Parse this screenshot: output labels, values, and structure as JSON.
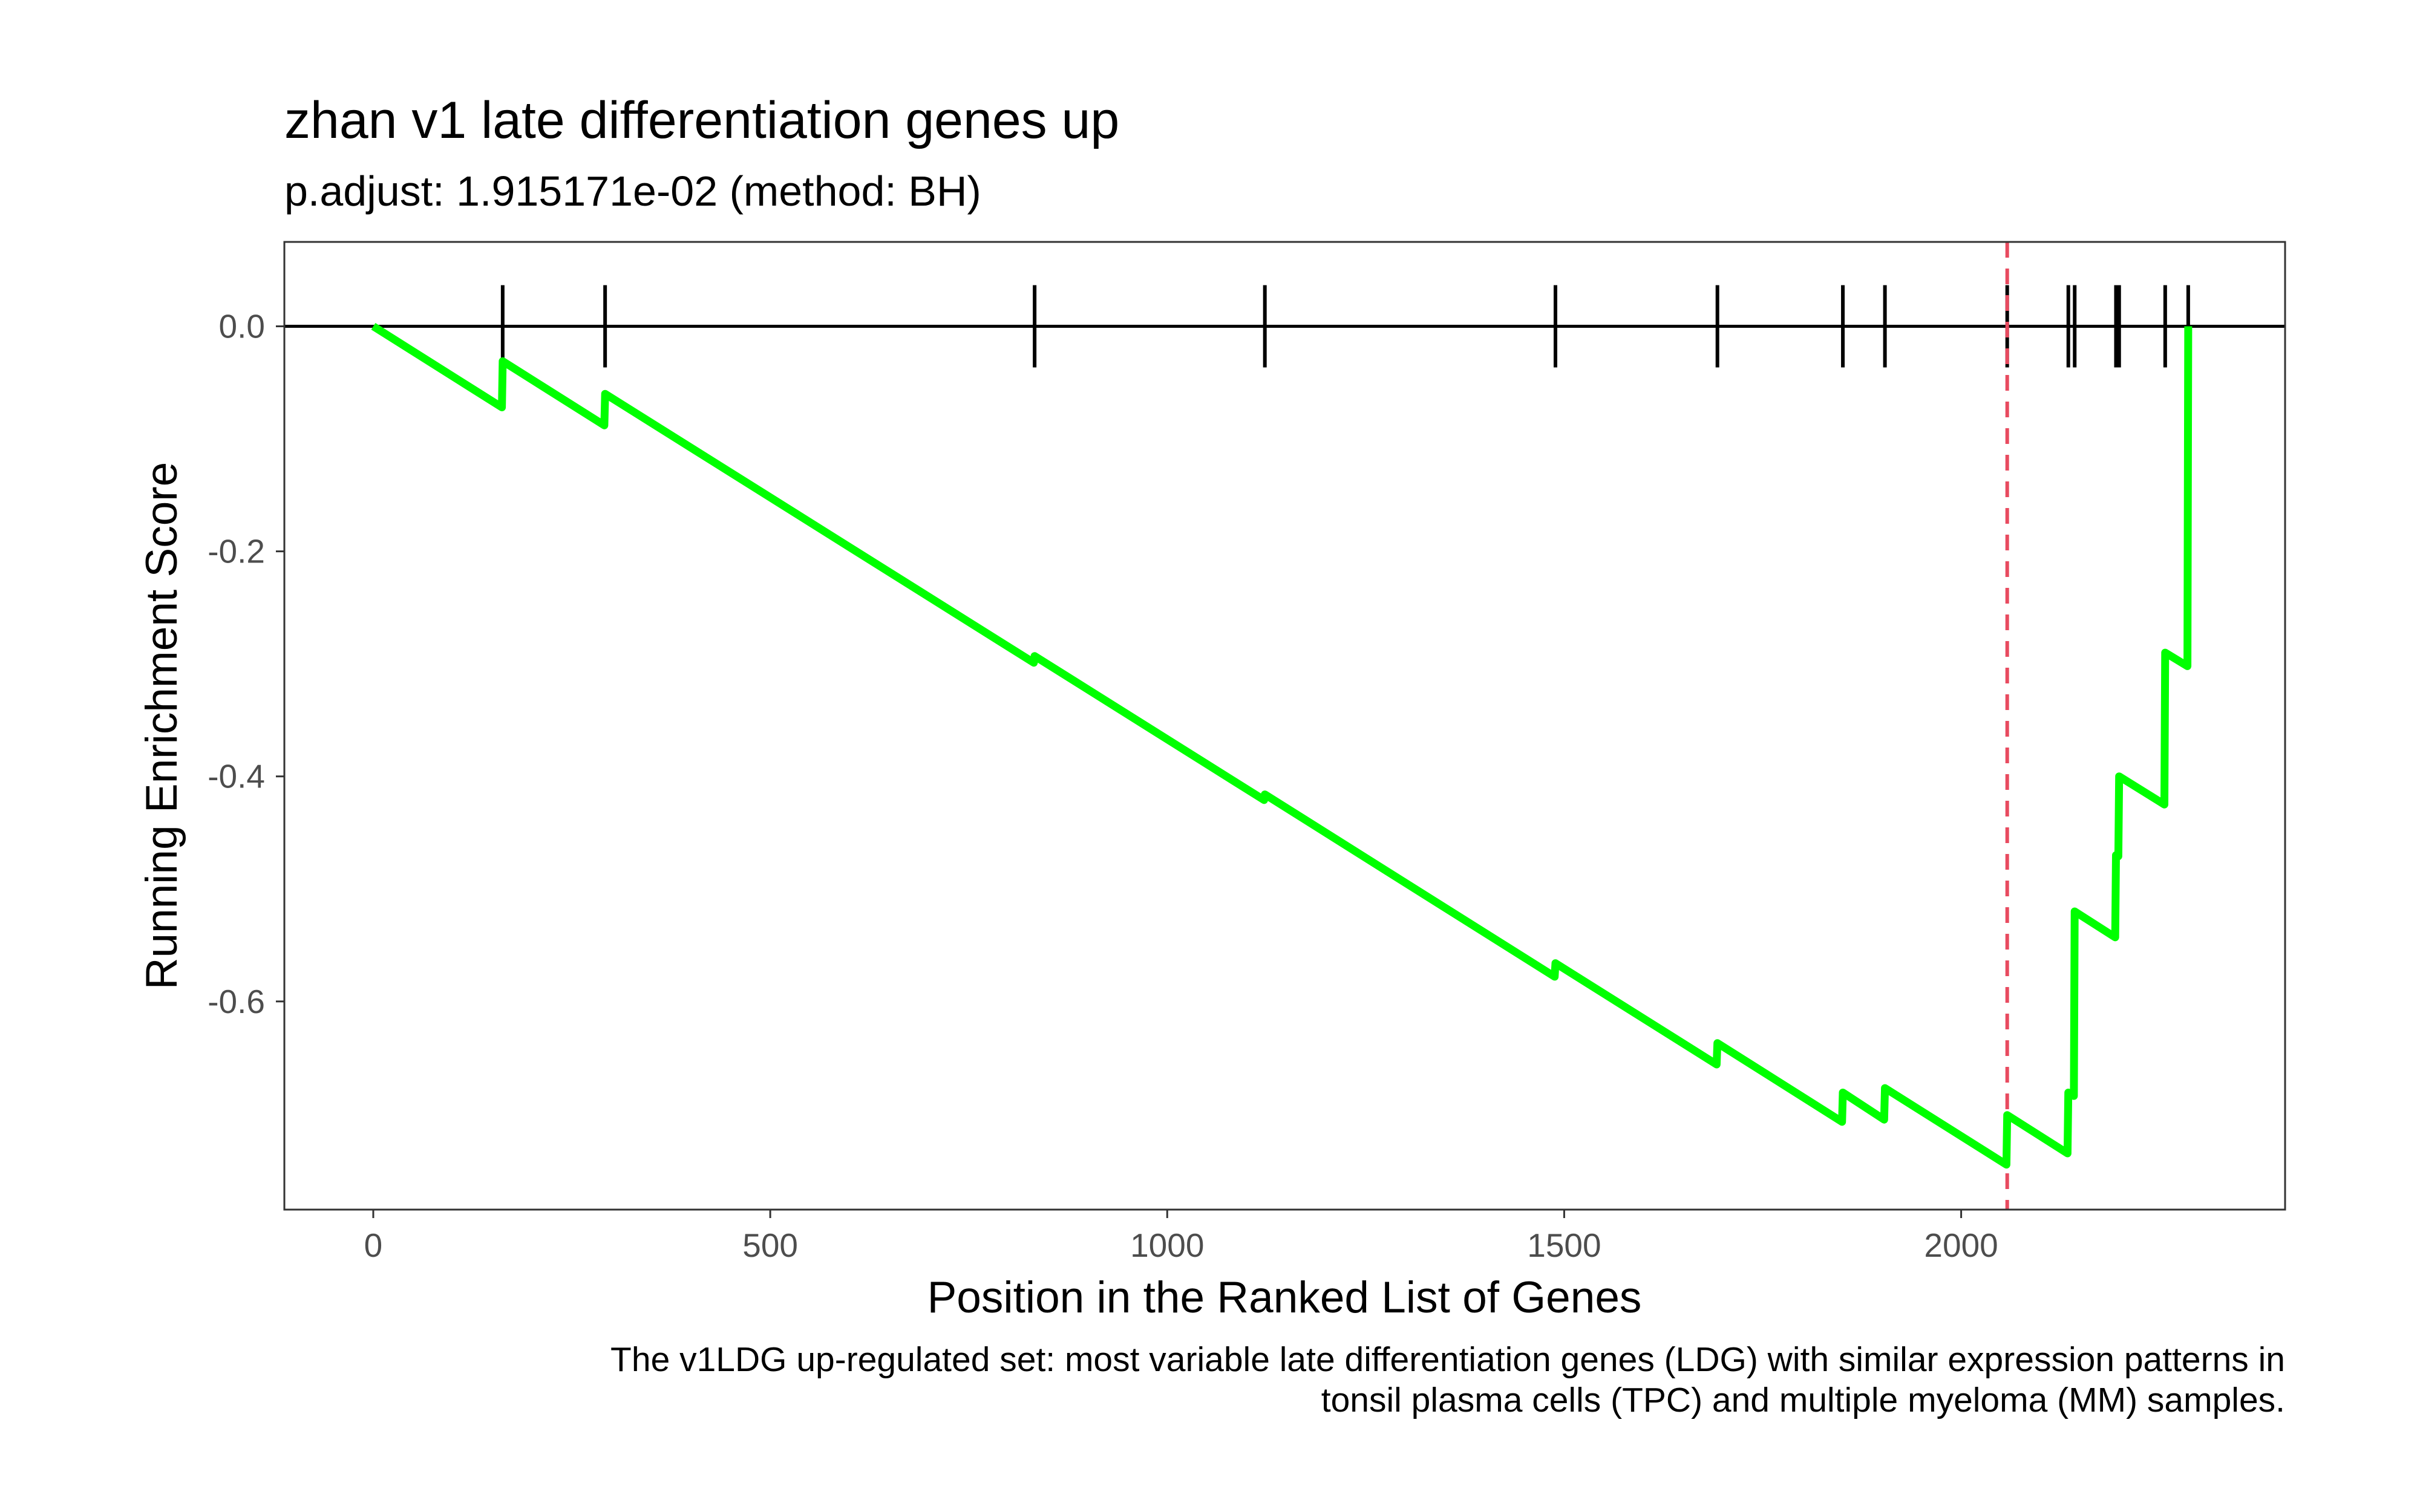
{
  "chart_data": {
    "type": "line",
    "title": "zhan v1 late differentiation genes up",
    "subtitle": "p.adjust: 1.915171e-02 (method: BH)",
    "xlabel": "Position in the Ranked List of Genes",
    "ylabel": "Running Enrichment Score",
    "caption_lines": [
      "The v1LDG up-regulated set: most variable late differentiation genes (LDG) with similar expression patterns in",
      "tonsil plasma cells (TPC) and multiple myeloma (MM) samples."
    ],
    "xlim": [
      -112,
      2408
    ],
    "ylim": [
      -0.785,
      0.075
    ],
    "x_ticks": [
      0,
      500,
      1000,
      1500,
      2000
    ],
    "x_tick_labels": [
      "0",
      "500",
      "1000",
      "1500",
      "2000"
    ],
    "y_ticks": [
      0.0,
      -0.2,
      -0.4,
      -0.6
    ],
    "y_tick_labels": [
      "0.0",
      "-0.2",
      "-0.4",
      "-0.6"
    ],
    "grid": false,
    "legend": "none",
    "hit_positions": [
      163,
      292,
      833,
      1123,
      1489,
      1693,
      1851,
      1904,
      2058,
      2135,
      2143,
      2195,
      2199,
      2257,
      2286
    ],
    "max_deviation_position": 2058,
    "series": [
      {
        "color": "#00ff00",
        "x": [
          0,
          162,
          163,
          291,
          292,
          832,
          833,
          1122,
          1123,
          1488,
          1489,
          1692,
          1693,
          1850,
          1851,
          1903,
          1904,
          2057,
          2058,
          2134,
          2135,
          2142,
          2143,
          2194,
          2195,
          2198,
          2199,
          2256,
          2257,
          2285,
          2286
        ],
        "y": [
          0.0,
          -0.072,
          -0.031,
          -0.088,
          -0.06,
          -0.299,
          -0.293,
          -0.421,
          -0.416,
          -0.578,
          -0.566,
          -0.656,
          -0.637,
          -0.707,
          -0.681,
          -0.705,
          -0.677,
          -0.745,
          -0.701,
          -0.735,
          -0.681,
          -0.684,
          -0.52,
          -0.543,
          -0.47,
          -0.471,
          -0.4,
          -0.425,
          -0.29,
          -0.302,
          0.0
        ]
      }
    ],
    "colors": {
      "curve": "#00ff00",
      "max_line": "#e84a5f",
      "hits": "#000000",
      "zero_line": "#000000",
      "panel_border": "#333333",
      "tick_label": "#4d4d4d"
    }
  }
}
